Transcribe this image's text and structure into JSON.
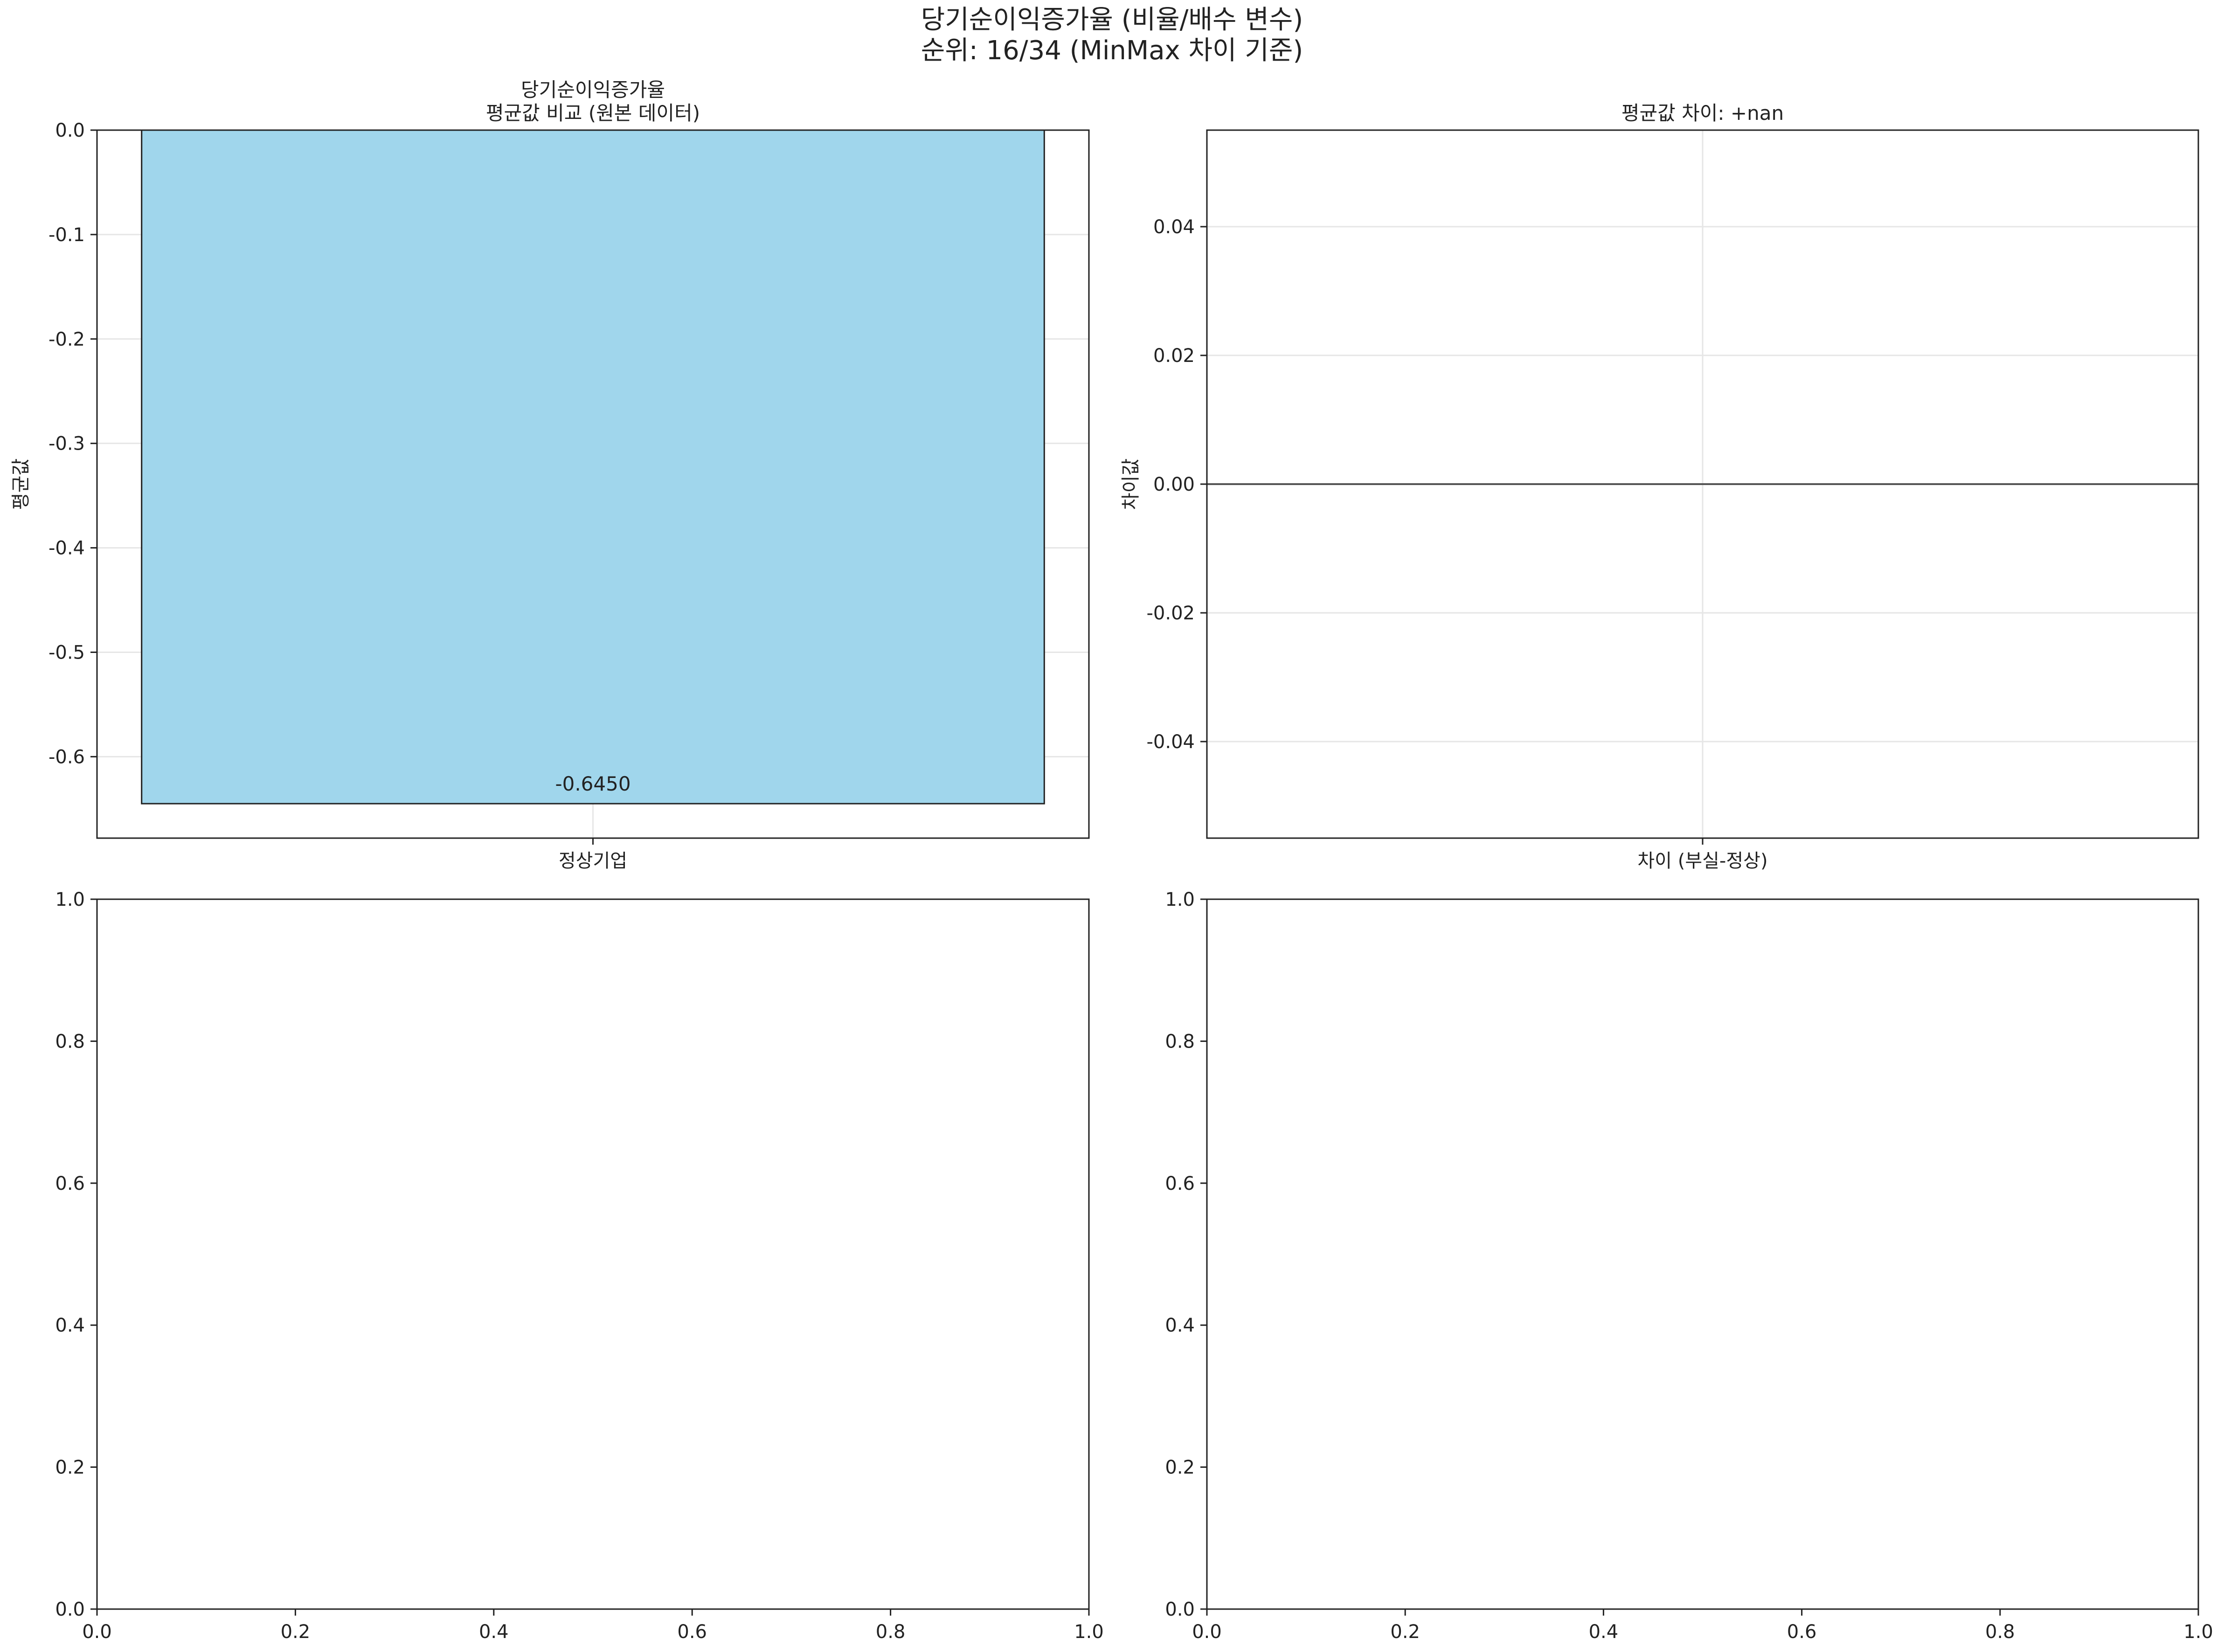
{
  "figure": {
    "title_line1": "당기순이익증가율 (비율/배수 변수)",
    "title_line2": "순위: 16/34 (MinMax 차이 기준)"
  },
  "colors": {
    "bar_fill": "#a0d6ec",
    "bar_edge": "#222222",
    "grid": "#e6e6e6",
    "zero_line": "#555555",
    "axes": "#222222"
  },
  "chart_data": [
    {
      "type": "bar",
      "title": "당기순이익증가율\n평균값 비교 (원본 데이터)",
      "categories": [
        "정상기업"
      ],
      "values": [
        -0.645
      ],
      "data_labels": [
        "-0.6450"
      ],
      "xlabel": "",
      "ylabel": "평균값",
      "ylim": [
        -0.678,
        0.0
      ],
      "yticks": [
        0.0,
        -0.1,
        -0.2,
        -0.3,
        -0.4,
        -0.5,
        -0.6
      ],
      "ytick_labels": [
        "0.0",
        "-0.1",
        "-0.2",
        "-0.3",
        "-0.4",
        "-0.5",
        "-0.6"
      ],
      "grid": true
    },
    {
      "type": "bar",
      "title": "평균값 차이: +nan",
      "categories": [
        "차이 (부실-정상)"
      ],
      "values": [
        null
      ],
      "xlabel": "",
      "ylabel": "차이값",
      "ylim": [
        -0.055,
        0.055
      ],
      "yticks": [
        0.04,
        0.02,
        0.0,
        -0.02,
        -0.04
      ],
      "ytick_labels": [
        "0.04",
        "0.02",
        "0.00",
        "-0.02",
        "-0.04"
      ],
      "reference_line_y": 0.0,
      "grid": true
    },
    {
      "type": "scatter",
      "title": "",
      "empty": true,
      "xlim": [
        0.0,
        1.0
      ],
      "ylim": [
        0.0,
        1.0
      ],
      "xticks": [
        0.0,
        0.2,
        0.4,
        0.6,
        0.8,
        1.0
      ],
      "xtick_labels": [
        "0.0",
        "0.2",
        "0.4",
        "0.6",
        "0.8",
        "1.0"
      ],
      "yticks": [
        0.0,
        0.2,
        0.4,
        0.6,
        0.8,
        1.0
      ],
      "ytick_labels": [
        "0.0",
        "0.2",
        "0.4",
        "0.6",
        "0.8",
        "1.0"
      ],
      "grid": false
    },
    {
      "type": "scatter",
      "title": "",
      "empty": true,
      "xlim": [
        0.0,
        1.0
      ],
      "ylim": [
        0.0,
        1.0
      ],
      "xticks": [
        0.0,
        0.2,
        0.4,
        0.6,
        0.8,
        1.0
      ],
      "xtick_labels": [
        "0.0",
        "0.2",
        "0.4",
        "0.6",
        "0.8",
        "1.0"
      ],
      "yticks": [
        0.0,
        0.2,
        0.4,
        0.6,
        0.8,
        1.0
      ],
      "ytick_labels": [
        "0.0",
        "0.2",
        "0.4",
        "0.6",
        "0.8",
        "1.0"
      ],
      "grid": false
    }
  ]
}
